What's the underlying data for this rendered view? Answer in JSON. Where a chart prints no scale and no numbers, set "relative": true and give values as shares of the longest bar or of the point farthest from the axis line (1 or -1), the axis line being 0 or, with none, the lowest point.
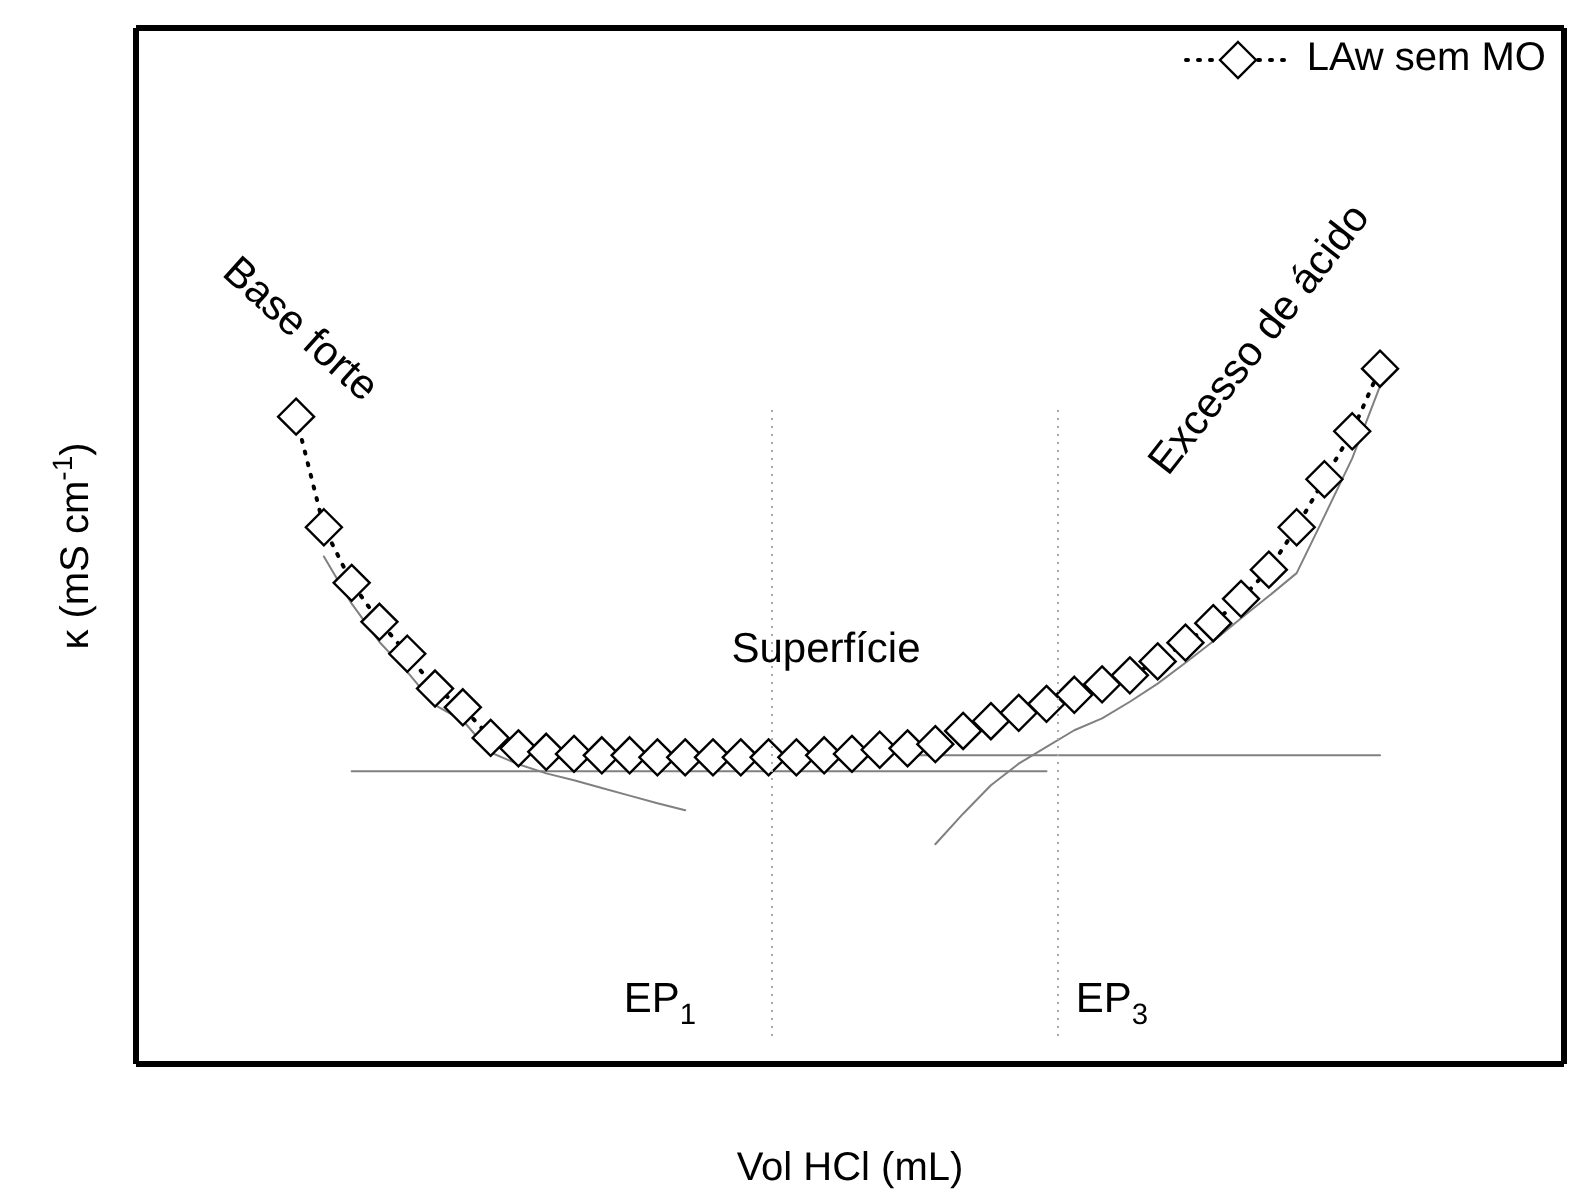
{
  "chart_data": {
    "type": "line",
    "relative": true,
    "xlabel": "Vol HCl (mL)",
    "ylabel": "κ (mS cm$^{-1}$)",
    "categories": [
      null,
      null,
      null,
      null,
      null,
      null,
      null,
      null,
      null,
      null,
      null,
      null,
      null,
      null,
      null,
      null,
      null,
      null,
      null,
      null,
      null,
      null,
      null,
      null,
      null,
      null,
      null,
      null,
      null,
      null,
      null,
      null,
      null,
      null,
      null,
      null,
      null,
      null,
      null,
      null
    ],
    "legend": "top right",
    "series": [
      {
        "name": "LAw sem MO",
        "color": "#000000",
        "marker": "diamond",
        "line_style": "dotted",
        "values": [
          0.931,
          0.772,
          0.692,
          0.636,
          0.59,
          0.54,
          0.513,
          0.469,
          0.454,
          0.449,
          0.446,
          0.444,
          0.444,
          0.441,
          0.441,
          0.441,
          0.441,
          0.441,
          0.441,
          0.444,
          0.446,
          0.452,
          0.454,
          0.46,
          0.479,
          0.493,
          0.505,
          0.518,
          0.531,
          0.546,
          0.559,
          0.579,
          0.606,
          0.634,
          0.669,
          0.711,
          0.772,
          0.841,
          0.91,
          1
        ]
      },
      {
        "color": "#808080",
        "marker": "none",
        "line_style": "solid",
        "values": [
          null,
          0.73,
          0.662,
          0.607,
          0.564,
          0.516,
          0.494,
          0.448,
          0.431,
          0.418,
          0.408,
          0.397,
          0.386,
          0.375,
          0.365,
          null,
          null,
          null,
          null,
          null,
          null,
          null,
          null,
          null,
          null,
          null,
          null,
          null,
          null,
          null,
          null,
          null,
          null,
          null,
          null,
          null,
          null,
          null,
          null,
          null
        ]
      },
      {
        "color": "#808080",
        "marker": "none",
        "line_style": "solid",
        "values": [
          null,
          null,
          0.421,
          0.421,
          0.421,
          0.421,
          0.421,
          0.421,
          0.421,
          0.421,
          0.421,
          0.421,
          0.421,
          0.421,
          0.421,
          0.421,
          0.421,
          0.421,
          0.421,
          0.421,
          0.421,
          0.421,
          0.421,
          0.421,
          0.421,
          0.421,
          0.421,
          0.421,
          null,
          null,
          null,
          null,
          null,
          null,
          null,
          null,
          null,
          null,
          null,
          null
        ]
      },
      {
        "color": "#808080",
        "marker": "none",
        "line_style": "solid",
        "values": [
          null,
          null,
          null,
          null,
          null,
          null,
          null,
          null,
          null,
          null,
          null,
          null,
          null,
          null,
          null,
          null,
          null,
          null,
          null,
          null,
          null,
          null,
          0.444,
          0.444,
          0.444,
          0.444,
          0.444,
          0.444,
          0.444,
          0.444,
          0.444,
          0.444,
          0.444,
          0.444,
          0.444,
          0.444,
          0.444,
          0.444,
          0.444,
          0.444
        ]
      },
      {
        "color": "#808080",
        "marker": "none",
        "line_style": "solid",
        "values": [
          null,
          null,
          null,
          null,
          null,
          null,
          null,
          null,
          null,
          null,
          null,
          null,
          null,
          null,
          null,
          null,
          null,
          null,
          null,
          null,
          null,
          null,
          null,
          0.316,
          0.36,
          0.401,
          0.432,
          0.456,
          0.48,
          0.497,
          0.521,
          0.547,
          0.577,
          0.608,
          0.641,
          0.673,
          0.706,
          0.788,
          0.871,
          0.975
        ]
      }
    ],
    "annotations": [
      "Base forte",
      "Excesso de ácido",
      "Superfície",
      "EP$_{1}$",
      "EP$_{3}$"
    ]
  }
}
